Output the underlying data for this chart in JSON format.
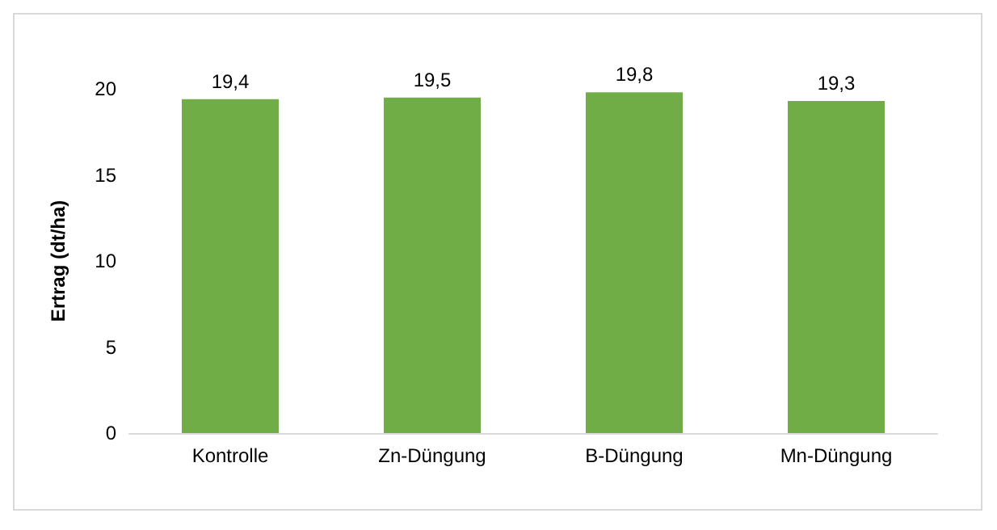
{
  "chart_data": {
    "type": "bar",
    "ylabel": "Ertrag (dt/ha)",
    "categories": [
      "Kontrolle",
      "Zn-Düngung",
      "B-Düngung",
      "Mn-Düngung"
    ],
    "values": [
      19.4,
      19.5,
      19.8,
      19.3
    ],
    "value_labels": [
      "19,4",
      "19,5",
      "19,8",
      "19,3"
    ],
    "color": "#70ad47",
    "ylim": [
      0,
      20
    ],
    "yticks": [
      0,
      5,
      10,
      15,
      20
    ],
    "grid": false
  }
}
